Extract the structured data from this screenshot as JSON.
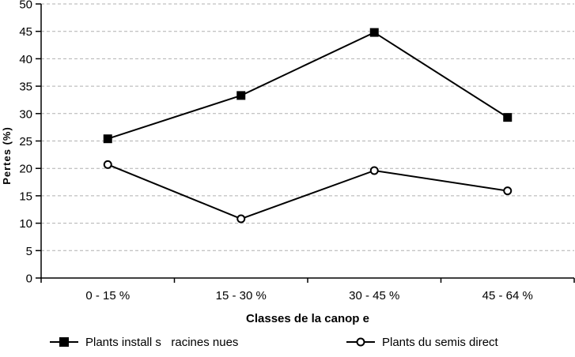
{
  "chart_data": {
    "type": "line",
    "title": "",
    "xlabel": "Classes de la canop e",
    "ylabel": "Pertes (%)",
    "categories": [
      "0 - 15 %",
      "15 - 30 %",
      "30 - 45 %",
      "45 - 64 %"
    ],
    "series": [
      {
        "name": "Plants install s   racines nues",
        "marker": "filled-square",
        "values": [
          25.4,
          33.3,
          44.8,
          29.3
        ]
      },
      {
        "name": "Plants du semis direct",
        "marker": "open-circle",
        "values": [
          20.7,
          10.8,
          19.6,
          15.9
        ]
      }
    ],
    "ylim": [
      0,
      50
    ],
    "ytick_step": 5,
    "grid": "horizontal-dashed",
    "legend_position": "bottom",
    "colors": {
      "line": "#000000",
      "grid": "#b0b0b0",
      "background": "#ffffff",
      "text": "#000000"
    }
  }
}
